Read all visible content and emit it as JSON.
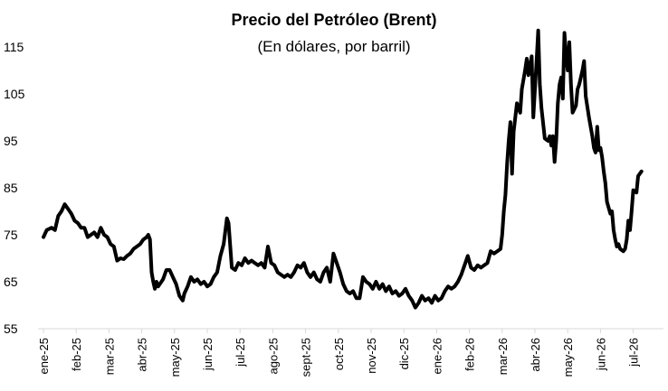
{
  "chart_data": {
    "type": "line",
    "title": "Precio del Petróleo (Brent)",
    "subtitle": "(En dólares, por barril)",
    "xlabel": "",
    "ylabel": "",
    "ylim": [
      55,
      120
    ],
    "yticks": [
      55,
      65,
      75,
      85,
      95,
      105,
      115
    ],
    "categories": [
      "ene-25",
      "feb-25",
      "mar-25",
      "abr-25",
      "may-25",
      "jun-25",
      "jul-25",
      "ago-25",
      "sept-25",
      "oct-25",
      "nov-25",
      "dic-25",
      "ene-26",
      "feb-26",
      "mar-26",
      "abr-26",
      "may-26",
      "jun-26",
      "jul-26"
    ],
    "grid": false,
    "legend": "none",
    "colors": {
      "line": "#000000",
      "axis": "#d9d9d9"
    },
    "series": [
      {
        "values": [
          [
            0.0,
            74.5
          ],
          [
            0.1,
            76.0
          ],
          [
            0.25,
            76.5
          ],
          [
            0.35,
            76.0
          ],
          [
            0.45,
            79.0
          ],
          [
            0.55,
            80.0
          ],
          [
            0.65,
            81.5
          ],
          [
            0.75,
            80.5
          ],
          [
            0.85,
            79.5
          ],
          [
            0.95,
            78.0
          ],
          [
            1.05,
            77.5
          ],
          [
            1.15,
            76.5
          ],
          [
            1.25,
            76.5
          ],
          [
            1.35,
            74.5
          ],
          [
            1.45,
            75.0
          ],
          [
            1.55,
            75.5
          ],
          [
            1.65,
            74.5
          ],
          [
            1.75,
            76.5
          ],
          [
            1.85,
            75.0
          ],
          [
            1.95,
            74.5
          ],
          [
            2.05,
            73.0
          ],
          [
            2.15,
            72.5
          ],
          [
            2.25,
            69.5
          ],
          [
            2.35,
            70.0
          ],
          [
            2.45,
            69.8
          ],
          [
            2.55,
            70.5
          ],
          [
            2.65,
            71.0
          ],
          [
            2.75,
            72.0
          ],
          [
            2.85,
            72.5
          ],
          [
            2.95,
            73.0
          ],
          [
            3.05,
            74.0
          ],
          [
            3.15,
            74.5
          ],
          [
            3.2,
            75.0
          ],
          [
            3.25,
            74.0
          ],
          [
            3.3,
            67.0
          ],
          [
            3.35,
            65.0
          ],
          [
            3.4,
            63.5
          ],
          [
            3.45,
            65.0
          ],
          [
            3.5,
            64.0
          ],
          [
            3.55,
            64.5
          ],
          [
            3.65,
            65.5
          ],
          [
            3.75,
            67.5
          ],
          [
            3.85,
            67.5
          ],
          [
            3.95,
            66.0
          ],
          [
            4.05,
            64.5
          ],
          [
            4.15,
            62.0
          ],
          [
            4.25,
            61.0
          ],
          [
            4.3,
            62.5
          ],
          [
            4.4,
            64.0
          ],
          [
            4.5,
            66.0
          ],
          [
            4.6,
            65.0
          ],
          [
            4.7,
            65.5
          ],
          [
            4.8,
            64.5
          ],
          [
            4.9,
            65.0
          ],
          [
            5.0,
            64.0
          ],
          [
            5.1,
            64.5
          ],
          [
            5.2,
            66.0
          ],
          [
            5.3,
            67.0
          ],
          [
            5.4,
            70.5
          ],
          [
            5.5,
            73.0
          ],
          [
            5.6,
            78.5
          ],
          [
            5.65,
            77.5
          ],
          [
            5.75,
            68.0
          ],
          [
            5.85,
            67.5
          ],
          [
            5.95,
            69.0
          ],
          [
            6.05,
            68.5
          ],
          [
            6.15,
            70.0
          ],
          [
            6.25,
            69.0
          ],
          [
            6.35,
            69.5
          ],
          [
            6.45,
            69.0
          ],
          [
            6.55,
            68.5
          ],
          [
            6.65,
            69.0
          ],
          [
            6.75,
            68.0
          ],
          [
            6.85,
            72.5
          ],
          [
            6.95,
            69.0
          ],
          [
            7.05,
            68.5
          ],
          [
            7.15,
            67.0
          ],
          [
            7.25,
            66.5
          ],
          [
            7.35,
            66.0
          ],
          [
            7.45,
            66.5
          ],
          [
            7.55,
            66.0
          ],
          [
            7.65,
            67.0
          ],
          [
            7.75,
            68.5
          ],
          [
            7.85,
            68.0
          ],
          [
            7.95,
            69.0
          ],
          [
            8.05,
            67.0
          ],
          [
            8.15,
            66.0
          ],
          [
            8.25,
            67.0
          ],
          [
            8.35,
            65.5
          ],
          [
            8.45,
            65.0
          ],
          [
            8.55,
            67.0
          ],
          [
            8.65,
            68.0
          ],
          [
            8.75,
            65.0
          ],
          [
            8.85,
            71.0
          ],
          [
            8.95,
            69.0
          ],
          [
            9.05,
            67.0
          ],
          [
            9.15,
            64.5
          ],
          [
            9.25,
            63.0
          ],
          [
            9.35,
            62.5
          ],
          [
            9.45,
            63.0
          ],
          [
            9.55,
            61.5
          ],
          [
            9.65,
            61.5
          ],
          [
            9.75,
            66.0
          ],
          [
            9.85,
            65.0
          ],
          [
            9.95,
            64.5
          ],
          [
            10.05,
            63.5
          ],
          [
            10.15,
            65.0
          ],
          [
            10.25,
            63.5
          ],
          [
            10.35,
            64.5
          ],
          [
            10.45,
            63.0
          ],
          [
            10.55,
            64.0
          ],
          [
            10.65,
            62.5
          ],
          [
            10.75,
            63.0
          ],
          [
            10.85,
            62.0
          ],
          [
            10.95,
            62.5
          ],
          [
            11.05,
            63.5
          ],
          [
            11.15,
            62.0
          ],
          [
            11.25,
            61.0
          ],
          [
            11.35,
            59.5
          ],
          [
            11.45,
            60.5
          ],
          [
            11.55,
            62.0
          ],
          [
            11.65,
            61.0
          ],
          [
            11.75,
            61.5
          ],
          [
            11.85,
            60.5
          ],
          [
            11.95,
            62.0
          ],
          [
            12.05,
            61.0
          ],
          [
            12.15,
            61.5
          ],
          [
            12.25,
            63.0
          ],
          [
            12.35,
            64.0
          ],
          [
            12.45,
            63.5
          ],
          [
            12.55,
            64.0
          ],
          [
            12.65,
            65.0
          ],
          [
            12.75,
            66.5
          ],
          [
            12.85,
            68.5
          ],
          [
            12.95,
            70.5
          ],
          [
            13.05,
            68.0
          ],
          [
            13.15,
            67.5
          ],
          [
            13.25,
            68.5
          ],
          [
            13.35,
            68.0
          ],
          [
            13.45,
            68.5
          ],
          [
            13.55,
            69.0
          ],
          [
            13.65,
            71.5
          ],
          [
            13.75,
            71.0
          ],
          [
            13.85,
            71.5
          ],
          [
            13.95,
            72.0
          ],
          [
            14.0,
            75.0
          ],
          [
            14.05,
            80.0
          ],
          [
            14.1,
            83.5
          ],
          [
            14.15,
            90.0
          ],
          [
            14.2,
            95.0
          ],
          [
            14.25,
            99.0
          ],
          [
            14.3,
            88.0
          ],
          [
            14.35,
            97.0
          ],
          [
            14.45,
            103.0
          ],
          [
            14.55,
            101.0
          ],
          [
            14.6,
            106.0
          ],
          [
            14.7,
            110.0
          ],
          [
            14.75,
            112.5
          ],
          [
            14.8,
            109.0
          ],
          [
            14.9,
            113.0
          ],
          [
            14.95,
            100.0
          ],
          [
            15.05,
            112.0
          ],
          [
            15.1,
            118.5
          ],
          [
            15.15,
            107.0
          ],
          [
            15.2,
            102.0
          ],
          [
            15.3,
            95.5
          ],
          [
            15.4,
            95.0
          ],
          [
            15.45,
            96.0
          ],
          [
            15.5,
            94.0
          ],
          [
            15.55,
            96.0
          ],
          [
            15.6,
            90.5
          ],
          [
            15.65,
            95.0
          ],
          [
            15.7,
            103.0
          ],
          [
            15.75,
            107.0
          ],
          [
            15.8,
            108.5
          ],
          [
            15.85,
            104.0
          ],
          [
            15.9,
            118.0
          ],
          [
            15.95,
            113.0
          ],
          [
            16.0,
            110.0
          ],
          [
            16.05,
            116.0
          ],
          [
            16.1,
            107.0
          ],
          [
            16.15,
            101.0
          ],
          [
            16.25,
            102.5
          ],
          [
            16.3,
            106.0
          ],
          [
            16.35,
            107.0
          ],
          [
            16.45,
            110.0
          ],
          [
            16.5,
            112.0
          ],
          [
            16.55,
            104.5
          ],
          [
            16.65,
            100.0
          ],
          [
            16.75,
            96.0
          ],
          [
            16.8,
            93.5
          ],
          [
            16.85,
            92.5
          ],
          [
            16.9,
            98.0
          ],
          [
            16.95,
            93.0
          ],
          [
            17.0,
            93.5
          ],
          [
            17.05,
            91.5
          ],
          [
            17.1,
            88.5
          ],
          [
            17.15,
            86.0
          ],
          [
            17.2,
            82.0
          ],
          [
            17.3,
            79.5
          ],
          [
            17.35,
            80.0
          ],
          [
            17.4,
            76.0
          ],
          [
            17.45,
            74.0
          ],
          [
            17.5,
            72.5
          ],
          [
            17.55,
            73.0
          ],
          [
            17.6,
            72.0
          ],
          [
            17.7,
            71.5
          ],
          [
            17.75,
            72.0
          ],
          [
            17.8,
            74.0
          ],
          [
            17.85,
            78.0
          ],
          [
            17.9,
            76.0
          ],
          [
            17.95,
            80.0
          ],
          [
            18.0,
            84.5
          ],
          [
            18.1,
            84.0
          ],
          [
            18.15,
            87.5
          ],
          [
            18.25,
            88.5
          ]
        ]
      }
    ]
  }
}
